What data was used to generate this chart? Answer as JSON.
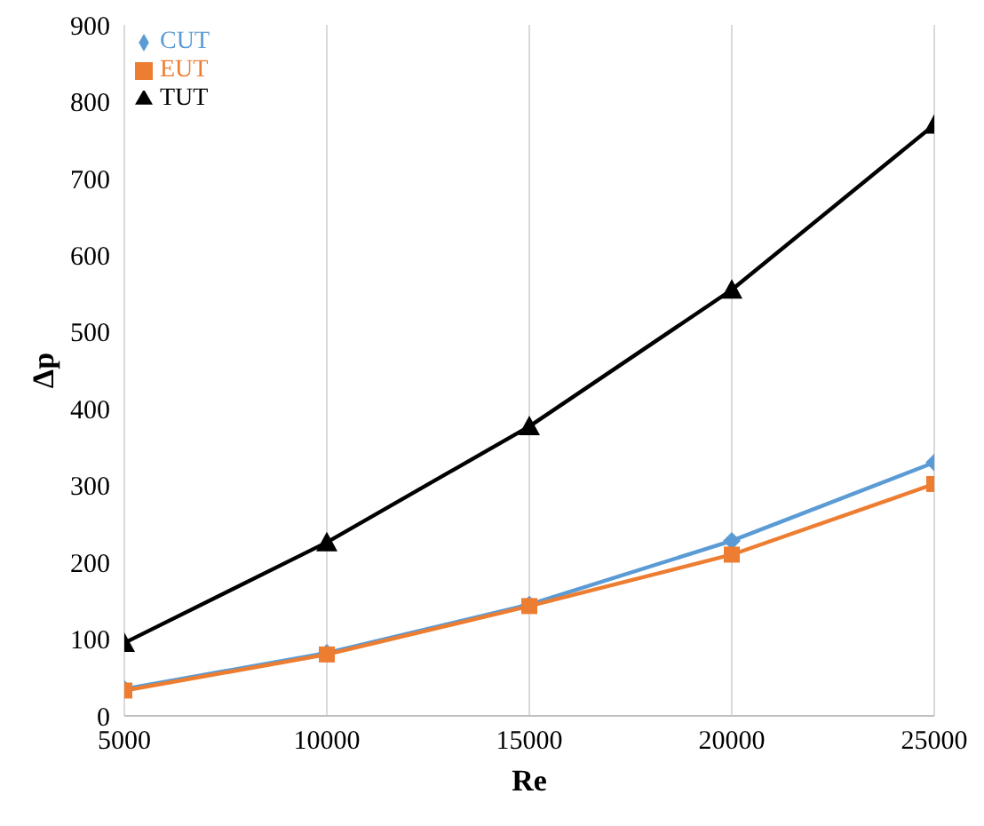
{
  "chart_data": {
    "type": "line",
    "xlabel": "Re",
    "ylabel": "Δp",
    "x": [
      5000,
      10000,
      15000,
      20000,
      25000
    ],
    "series": [
      {
        "name": "CUT",
        "color": "#5b9bd5",
        "marker": "diamond",
        "values": [
          35,
          82,
          145,
          228,
          330
        ]
      },
      {
        "name": "EUT",
        "color": "#ed7d31",
        "marker": "square",
        "values": [
          33,
          80,
          143,
          210,
          302
        ]
      },
      {
        "name": "TUT",
        "color": "#000000",
        "marker": "triangle",
        "values": [
          95,
          226,
          377,
          555,
          770
        ]
      }
    ],
    "xlim": [
      5000,
      25000
    ],
    "xticks": [
      5000,
      10000,
      15000,
      20000,
      25000
    ],
    "ylim": [
      0,
      900
    ],
    "yticks": [
      0,
      100,
      200,
      300,
      400,
      500,
      600,
      700,
      800,
      900
    ],
    "grid": "x",
    "legend": "top left",
    "line_style": "solid"
  }
}
